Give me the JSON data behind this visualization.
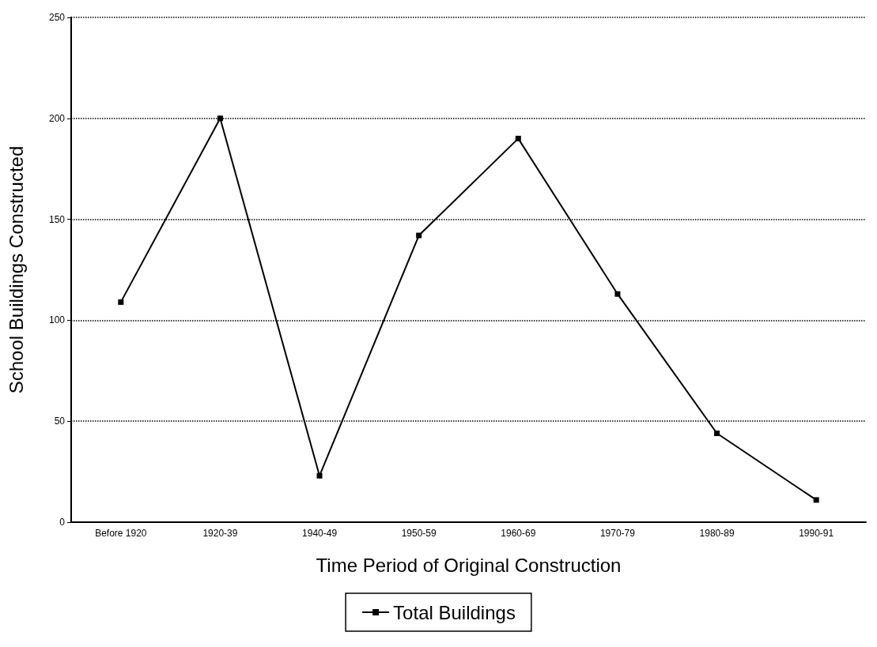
{
  "chart_data": {
    "type": "line",
    "xlabel": "Time Period of Original Construction",
    "ylabel": "School Buildings Constructed",
    "categories": [
      "Before 1920",
      "1920-39",
      "1940-49",
      "1950-59",
      "1960-69",
      "1970-79",
      "1980-89",
      "1990-91"
    ],
    "series": [
      {
        "name": "Total Buildings",
        "color": "#000000",
        "values": [
          109,
          200,
          23,
          142,
          190,
          113,
          44,
          11
        ]
      }
    ],
    "ylim": [
      0,
      250
    ],
    "yticks": [
      0,
      50,
      100,
      150,
      200,
      250
    ],
    "grid": "y",
    "legend": "bottom",
    "marker": "square",
    "line_style": "solid"
  }
}
